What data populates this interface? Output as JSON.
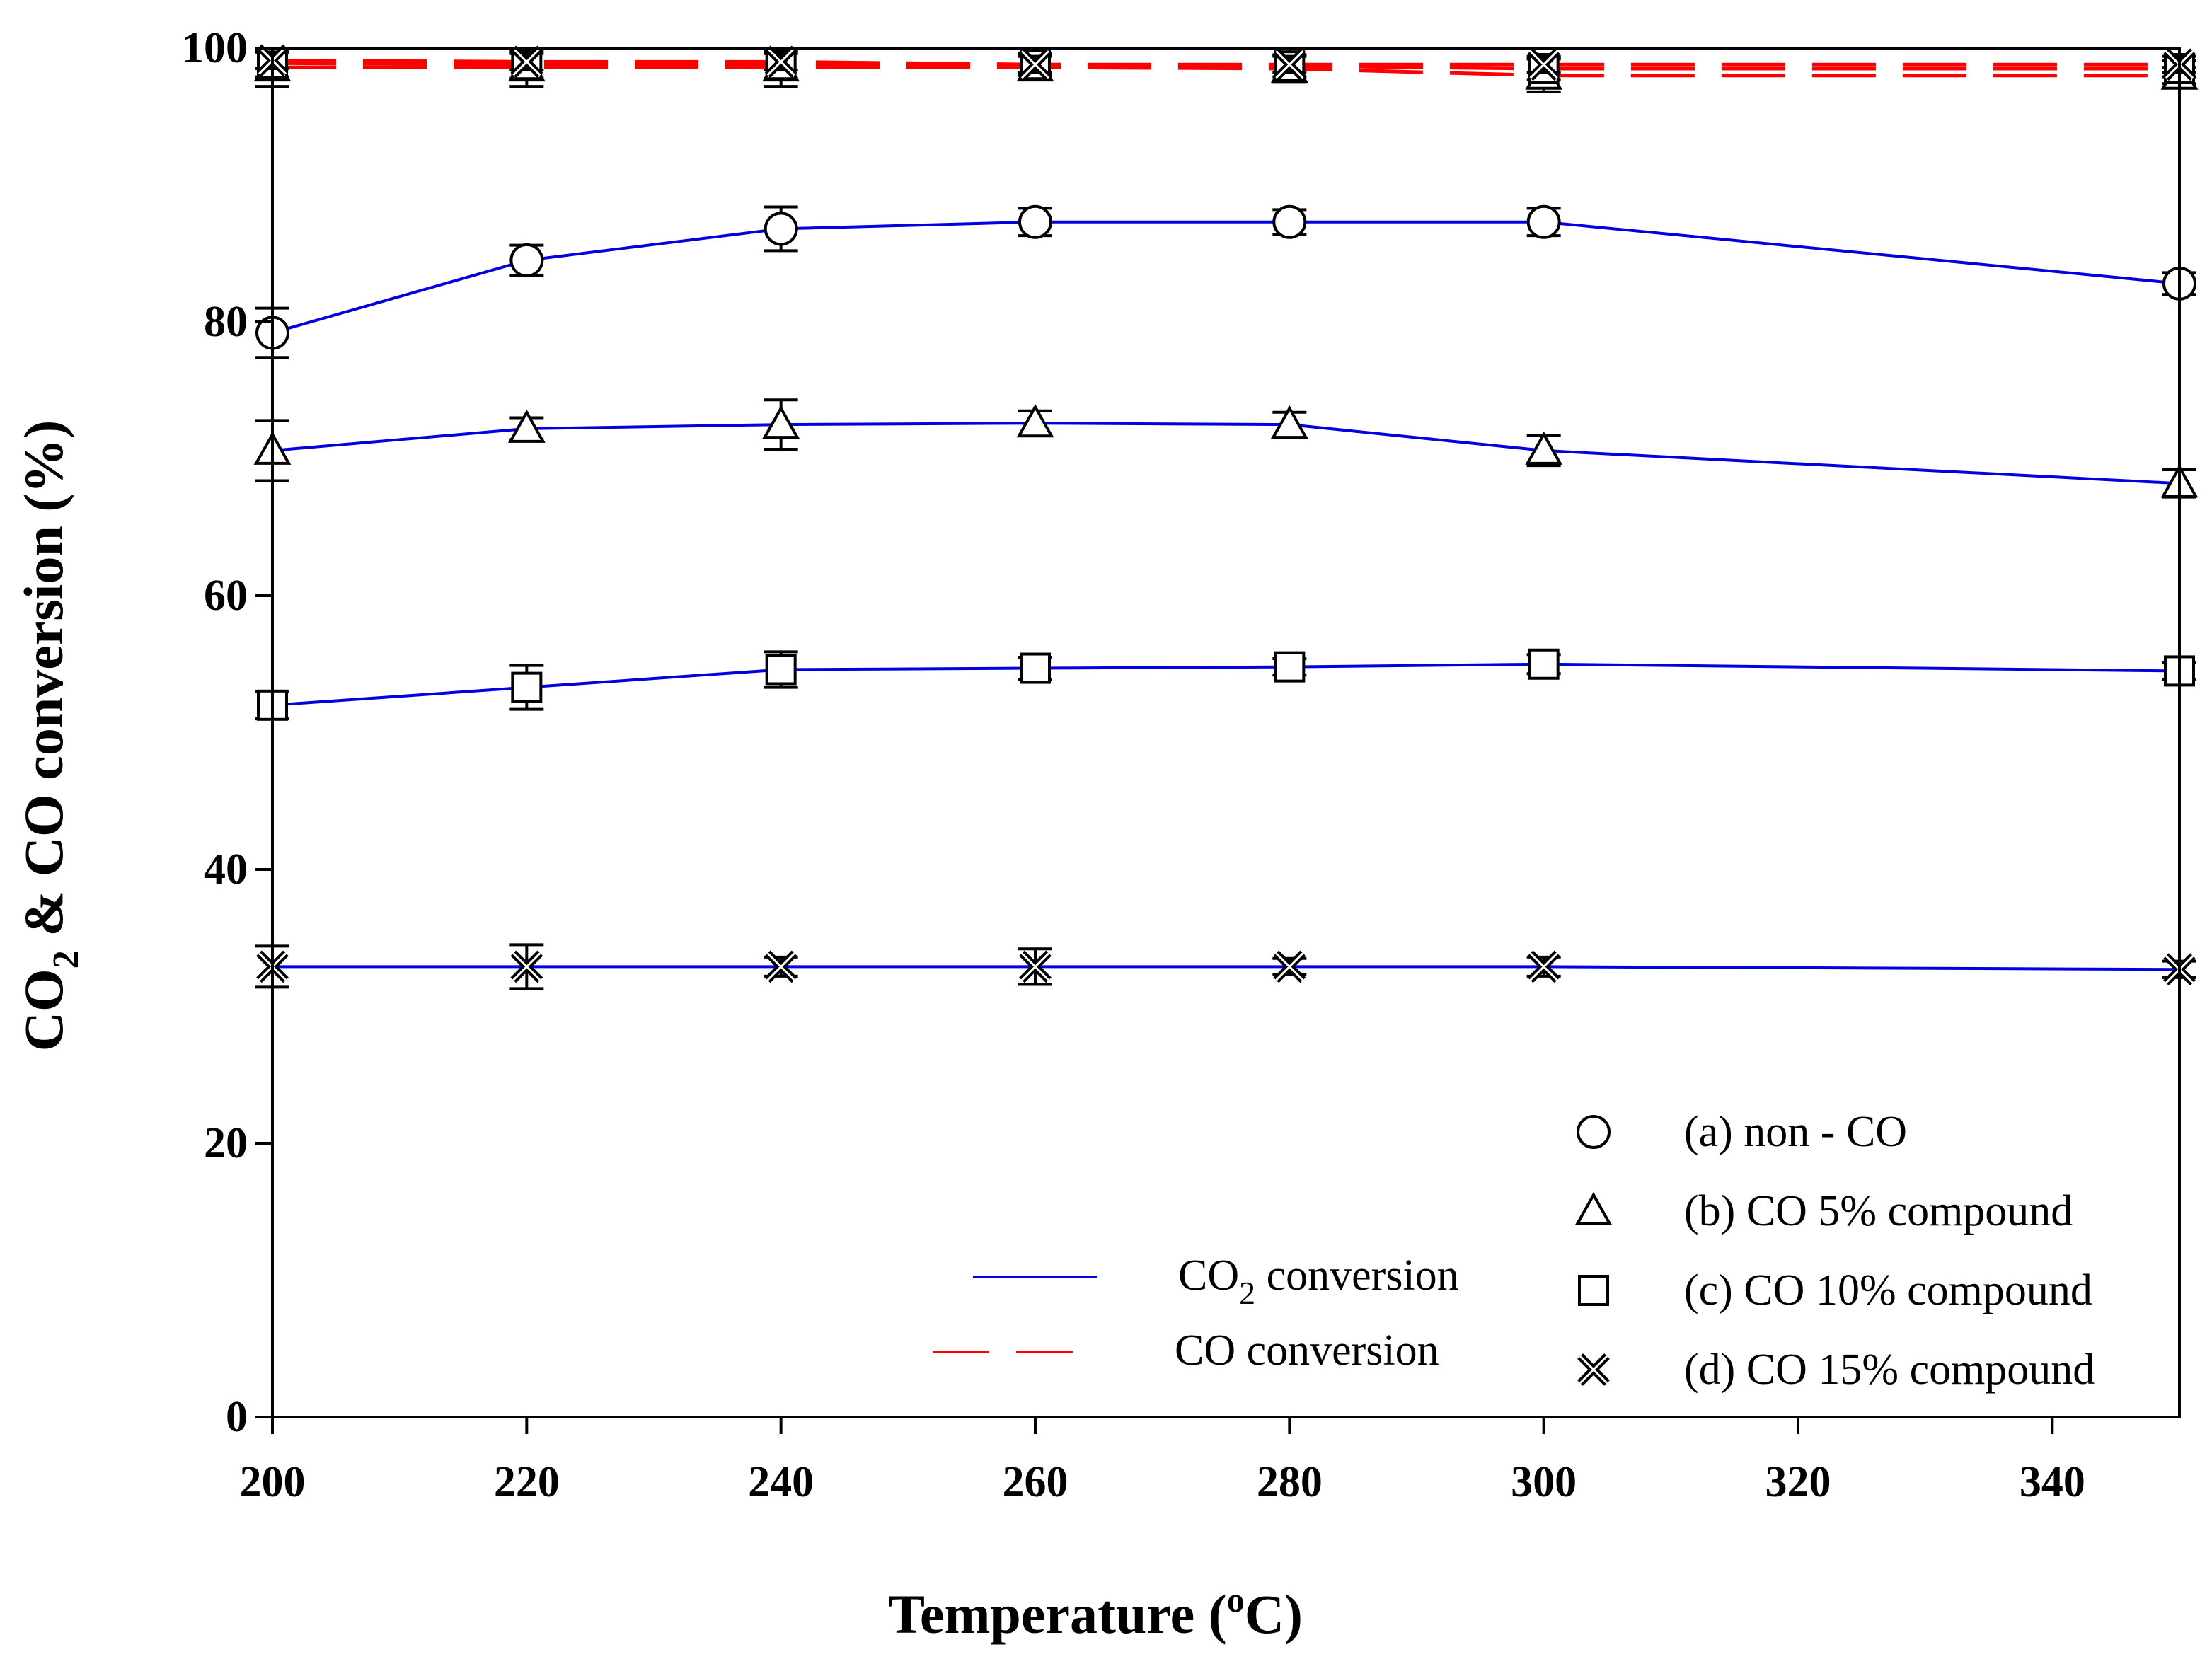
{
  "chart_data": {
    "type": "line",
    "title": "",
    "xlabel": {
      "main": "Temperature (",
      "sup": "o",
      "end": "C)"
    },
    "ylabel": {
      "part1": "CO",
      "sub": "2",
      "part2": " & CO conversion (%)"
    },
    "xlim": [
      200,
      350
    ],
    "ylim": [
      0,
      100
    ],
    "x_ticks": [
      "200",
      "220",
      "240",
      "260",
      "280",
      "300",
      "320",
      "340"
    ],
    "y_ticks": [
      "0",
      "20",
      "40",
      "60",
      "80",
      "100"
    ],
    "x": [
      200,
      220,
      240,
      260,
      280,
      300,
      350
    ],
    "series": [
      {
        "name": "(a) non - CO",
        "marker": "circle",
        "metric": "CO2 conversion",
        "values": [
          79.2,
          84.5,
          86.8,
          87.3,
          87.3,
          87.3,
          82.8
        ],
        "errors": [
          1.8,
          1.1,
          1.6,
          1.0,
          0.9,
          1.0,
          0.8
        ]
      },
      {
        "name": "(b) CO 5% compound",
        "marker": "triangle",
        "metric": "CO2 conversion",
        "values": [
          70.6,
          72.2,
          72.5,
          72.6,
          72.5,
          70.6,
          68.2
        ],
        "errors": [
          2.2,
          0.8,
          1.8,
          0.9,
          0.9,
          1.1,
          1.0
        ]
      },
      {
        "name": "(c) CO 10% compound",
        "marker": "square",
        "metric": "CO2 conversion",
        "values": [
          52.0,
          53.3,
          54.6,
          54.7,
          54.8,
          55.0,
          54.5
        ],
        "errors": [
          1.0,
          1.6,
          1.3,
          0.8,
          0.6,
          0.7,
          0.6
        ]
      },
      {
        "name": "(d) CO 15% compound",
        "marker": "x",
        "metric": "CO2 conversion",
        "values": [
          32.9,
          32.9,
          32.9,
          32.9,
          32.9,
          32.9,
          32.7
        ],
        "errors": [
          1.5,
          1.6,
          0.7,
          1.3,
          0.6,
          0.7,
          0.6
        ]
      },
      {
        "name": "(b) CO 5% compound",
        "marker": "triangle",
        "metric": "CO conversion",
        "values": [
          98.6,
          98.6,
          98.6,
          98.6,
          98.5,
          98.0,
          98.0
        ],
        "errors": [
          1.4,
          1.4,
          1.4,
          0.9,
          1.0,
          1.2,
          0.6
        ]
      },
      {
        "name": "(c) CO 10% compound",
        "marker": "square",
        "metric": "CO conversion",
        "values": [
          98.9,
          98.8,
          98.8,
          98.8,
          98.7,
          98.5,
          98.5
        ],
        "errors": [
          1.0,
          1.0,
          1.0,
          0.8,
          0.8,
          0.8,
          0.6
        ]
      },
      {
        "name": "(d) CO 15% compound",
        "marker": "x",
        "metric": "CO conversion",
        "values": [
          99.1,
          99.0,
          99.0,
          98.8,
          98.8,
          98.8,
          98.8
        ],
        "errors": [
          0.6,
          0.6,
          0.6,
          0.6,
          0.6,
          0.6,
          0.6
        ]
      }
    ],
    "legend_lines": [
      {
        "part1": "CO",
        "sub": "2",
        "part2": " conversion",
        "style": "solid",
        "color": "#0000e0"
      },
      {
        "part1": "CO conversion",
        "sub": "",
        "part2": "",
        "style": "dashed",
        "color": "#ff0000"
      }
    ],
    "legend_markers": [
      {
        "marker": "circle",
        "label": "(a) non - CO"
      },
      {
        "marker": "triangle",
        "label": "(b) CO 5% compound"
      },
      {
        "marker": "square",
        "label": "(c) CO 10% compound"
      },
      {
        "marker": "x",
        "label": "(d) CO 15% compound"
      }
    ],
    "legend_position": "bottom-right"
  }
}
